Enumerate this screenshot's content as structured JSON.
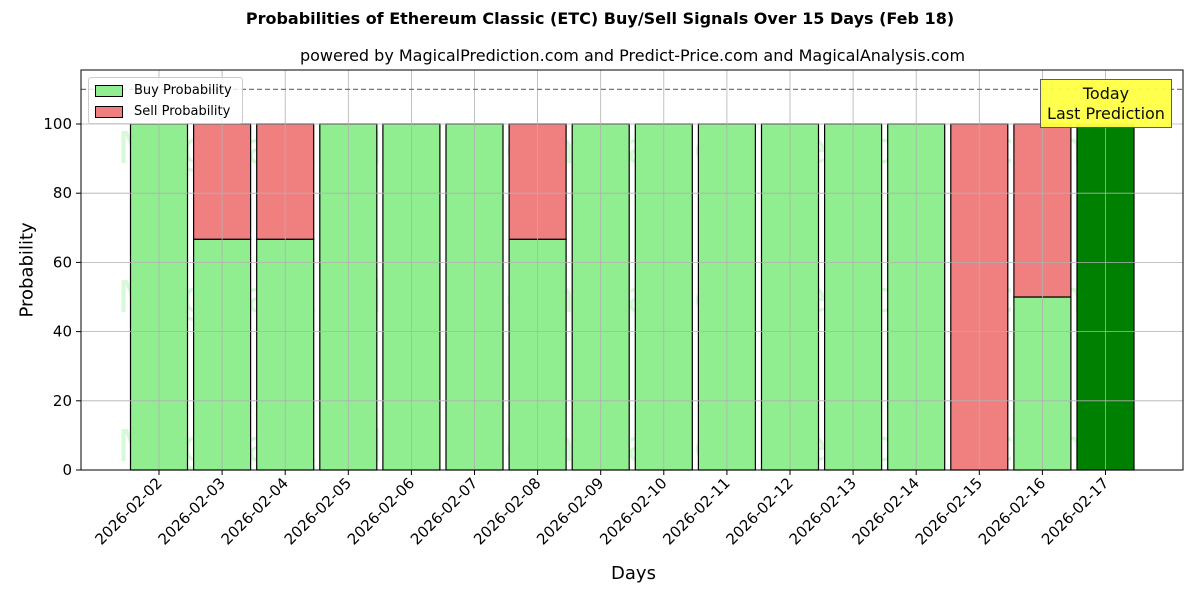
{
  "title": "Probabilities of Ethereum Classic (ETC) Buy/Sell Signals Over 15 Days (Feb 18)",
  "subtitle": "powered by MagicalPrediction.com and Predict-Price.com and MagicalAnalysis.com",
  "xlabel": "Days",
  "ylabel": "Probability",
  "legend": {
    "buy": "Buy Probability",
    "sell": "Sell Probability"
  },
  "annotation": {
    "line1": "Today",
    "line2": "Last Prediction"
  },
  "watermarks": [
    "MagicalAnalysis.com",
    "MagicalPrediction.com"
  ],
  "colors": {
    "buy": "#90ee90",
    "sell": "#f08080",
    "today": "#008000",
    "annotation_bg": "#ffff44"
  },
  "chart_data": {
    "type": "bar",
    "stacked": true,
    "title": "Probabilities of Ethereum Classic (ETC) Buy/Sell Signals Over 15 Days (Feb 18)",
    "subtitle": "powered by MagicalPrediction.com and Predict-Price.com and MagicalAnalysis.com",
    "xlabel": "Days",
    "ylabel": "Probability",
    "ylim": [
      0,
      115.6
    ],
    "yticks": [
      0,
      20,
      40,
      60,
      80,
      100
    ],
    "grid": true,
    "legend_position": "upper left",
    "reference_line": {
      "y": 110,
      "style": "dashed"
    },
    "categories": [
      "2026-02-02",
      "2026-02-03",
      "2026-02-04",
      "2026-02-05",
      "2026-02-06",
      "2026-02-07",
      "2026-02-08",
      "2026-02-09",
      "2026-02-10",
      "2026-02-11",
      "2026-02-12",
      "2026-02-13",
      "2026-02-14",
      "2026-02-15",
      "2026-02-16",
      "2026-02-17"
    ],
    "series": [
      {
        "name": "Buy Probability",
        "values": [
          100,
          66.7,
          66.7,
          100,
          100,
          100,
          66.7,
          100,
          100,
          100,
          100,
          100,
          100,
          0,
          50,
          100
        ]
      },
      {
        "name": "Sell Probability",
        "values": [
          0,
          33.3,
          33.3,
          0,
          0,
          0,
          33.3,
          0,
          0,
          0,
          0,
          0,
          0,
          100,
          50,
          0
        ]
      }
    ],
    "highlight": {
      "category": "2026-02-17",
      "label": "Today\nLast Prediction",
      "color": "#008000"
    }
  }
}
